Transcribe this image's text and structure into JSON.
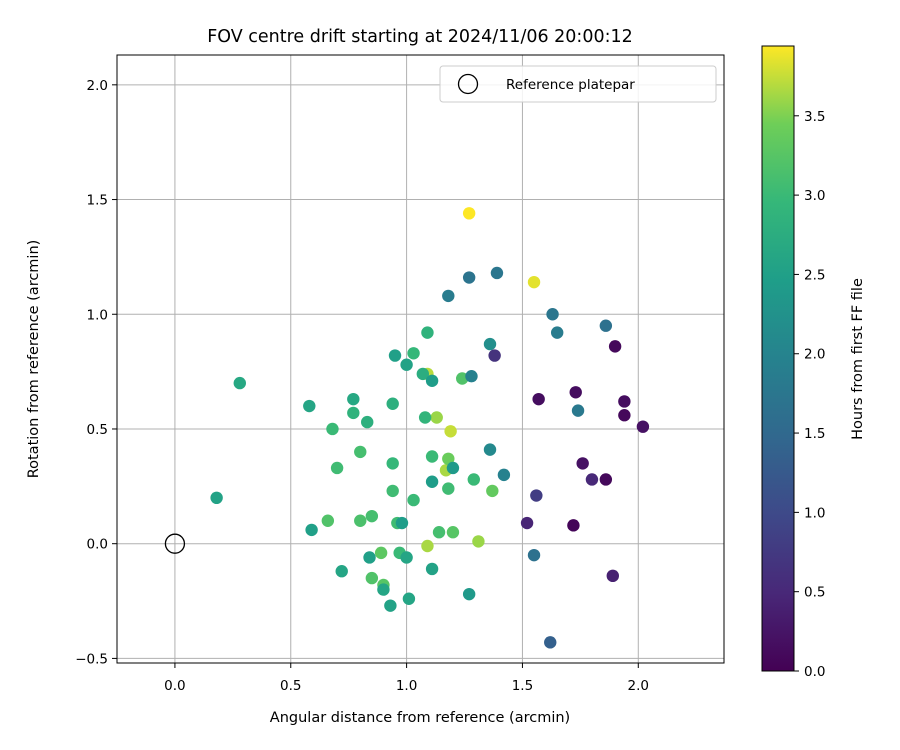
{
  "chart_data": {
    "type": "scatter",
    "title": "FOV centre drift starting at 2024/11/06 20:00:12",
    "xlabel": "Angular distance from reference (arcmin)",
    "ylabel": "Rotation from reference (arcmin)",
    "xlim": [
      -0.25,
      2.37
    ],
    "ylim": [
      -0.52,
      2.13
    ],
    "xticks": [
      0.0,
      0.5,
      1.0,
      1.5,
      2.0
    ],
    "xtick_labels": [
      "0.0",
      "0.5",
      "1.0",
      "1.5",
      "2.0"
    ],
    "yticks": [
      -0.5,
      0.0,
      0.5,
      1.0,
      1.5,
      2.0
    ],
    "ytick_labels": [
      "−0.5",
      "0.0",
      "0.5",
      "1.0",
      "1.5",
      "2.0"
    ],
    "grid": true,
    "legend": {
      "position": "top-right",
      "entries": [
        "Reference platepar"
      ]
    },
    "reference_point": {
      "x": 0.0,
      "y": 0.0,
      "label": "Reference platepar"
    },
    "colorbar": {
      "label": "Hours from first FF file",
      "colormap": "viridis",
      "range": [
        0.0,
        3.94
      ],
      "ticks": [
        0.0,
        0.5,
        1.0,
        1.5,
        2.0,
        2.5,
        3.0,
        3.5
      ],
      "tick_labels": [
        "0.0",
        "0.5",
        "1.0",
        "1.5",
        "2.0",
        "2.5",
        "3.0",
        "3.5"
      ]
    },
    "points": [
      {
        "x": 1.27,
        "y": 1.44,
        "h": 3.94
      },
      {
        "x": 1.55,
        "y": 1.14,
        "h": 3.85
      },
      {
        "x": 1.19,
        "y": 0.49,
        "h": 3.75
      },
      {
        "x": 1.09,
        "y": 0.74,
        "h": 3.7
      },
      {
        "x": 1.13,
        "y": 0.55,
        "h": 3.6
      },
      {
        "x": 1.17,
        "y": 0.32,
        "h": 3.65
      },
      {
        "x": 1.31,
        "y": 0.01,
        "h": 3.6
      },
      {
        "x": 1.09,
        "y": -0.01,
        "h": 3.65
      },
      {
        "x": 1.18,
        "y": 0.37,
        "h": 3.4
      },
      {
        "x": 1.37,
        "y": 0.23,
        "h": 3.35
      },
      {
        "x": 0.89,
        "y": -0.04,
        "h": 3.3
      },
      {
        "x": 0.9,
        "y": -0.18,
        "h": 3.25
      },
      {
        "x": 0.85,
        "y": -0.15,
        "h": 3.2
      },
      {
        "x": 0.66,
        "y": 0.1,
        "h": 3.2
      },
      {
        "x": 0.8,
        "y": 0.1,
        "h": 3.15
      },
      {
        "x": 0.85,
        "y": 0.12,
        "h": 3.1
      },
      {
        "x": 0.8,
        "y": 0.4,
        "h": 3.1
      },
      {
        "x": 0.7,
        "y": 0.33,
        "h": 3.05
      },
      {
        "x": 0.68,
        "y": 0.5,
        "h": 3.0
      },
      {
        "x": 1.03,
        "y": 0.19,
        "h": 3.0
      },
      {
        "x": 0.94,
        "y": 0.23,
        "h": 3.05
      },
      {
        "x": 0.94,
        "y": 0.35,
        "h": 2.95
      },
      {
        "x": 0.96,
        "y": 0.09,
        "h": 3.05
      },
      {
        "x": 0.97,
        "y": -0.04,
        "h": 3.0
      },
      {
        "x": 1.14,
        "y": 0.05,
        "h": 3.1
      },
      {
        "x": 1.2,
        "y": 0.05,
        "h": 3.25
      },
      {
        "x": 1.18,
        "y": 0.24,
        "h": 3.05
      },
      {
        "x": 1.29,
        "y": 0.28,
        "h": 3.0
      },
      {
        "x": 1.11,
        "y": 0.38,
        "h": 3.0
      },
      {
        "x": 1.24,
        "y": 0.72,
        "h": 3.2
      },
      {
        "x": 1.03,
        "y": 0.83,
        "h": 2.95
      },
      {
        "x": 1.09,
        "y": 0.92,
        "h": 2.85
      },
      {
        "x": 1.08,
        "y": 0.55,
        "h": 2.9
      },
      {
        "x": 0.94,
        "y": 0.61,
        "h": 2.8
      },
      {
        "x": 0.77,
        "y": 0.57,
        "h": 2.85
      },
      {
        "x": 0.83,
        "y": 0.53,
        "h": 2.8
      },
      {
        "x": 0.77,
        "y": 0.63,
        "h": 2.65
      },
      {
        "x": 0.58,
        "y": 0.6,
        "h": 2.6
      },
      {
        "x": 1.07,
        "y": 0.74,
        "h": 2.75
      },
      {
        "x": 0.95,
        "y": 0.82,
        "h": 2.5
      },
      {
        "x": 1.0,
        "y": 0.78,
        "h": 2.55
      },
      {
        "x": 1.11,
        "y": 0.71,
        "h": 2.45
      },
      {
        "x": 0.28,
        "y": 0.7,
        "h": 2.65
      },
      {
        "x": 0.18,
        "y": 0.2,
        "h": 2.55
      },
      {
        "x": 0.59,
        "y": 0.06,
        "h": 2.5
      },
      {
        "x": 0.72,
        "y": -0.12,
        "h": 2.6
      },
      {
        "x": 0.84,
        "y": -0.06,
        "h": 2.5
      },
      {
        "x": 0.9,
        "y": -0.2,
        "h": 2.6
      },
      {
        "x": 0.93,
        "y": -0.27,
        "h": 2.55
      },
      {
        "x": 1.01,
        "y": -0.24,
        "h": 2.6
      },
      {
        "x": 1.0,
        "y": -0.06,
        "h": 2.6
      },
      {
        "x": 0.98,
        "y": 0.09,
        "h": 2.45
      },
      {
        "x": 1.11,
        "y": -0.11,
        "h": 2.55
      },
      {
        "x": 1.11,
        "y": 0.27,
        "h": 2.45
      },
      {
        "x": 1.2,
        "y": 0.33,
        "h": 2.4
      },
      {
        "x": 1.27,
        "y": -0.22,
        "h": 2.4
      },
      {
        "x": 1.36,
        "y": 0.87,
        "h": 2.2
      },
      {
        "x": 1.36,
        "y": 0.41,
        "h": 2.1
      },
      {
        "x": 1.42,
        "y": 0.3,
        "h": 1.95
      },
      {
        "x": 1.28,
        "y": 0.73,
        "h": 1.95
      },
      {
        "x": 1.18,
        "y": 1.08,
        "h": 1.85
      },
      {
        "x": 1.27,
        "y": 1.16,
        "h": 1.7
      },
      {
        "x": 1.39,
        "y": 1.18,
        "h": 1.75
      },
      {
        "x": 1.63,
        "y": 1.0,
        "h": 1.75
      },
      {
        "x": 1.65,
        "y": 0.92,
        "h": 1.85
      },
      {
        "x": 1.74,
        "y": 0.58,
        "h": 1.8
      },
      {
        "x": 1.86,
        "y": 0.95,
        "h": 1.65
      },
      {
        "x": 1.55,
        "y": -0.05,
        "h": 1.65
      },
      {
        "x": 1.62,
        "y": -0.43,
        "h": 1.35
      },
      {
        "x": 1.38,
        "y": 0.82,
        "h": 0.65
      },
      {
        "x": 1.56,
        "y": 0.21,
        "h": 0.8
      },
      {
        "x": 1.52,
        "y": 0.09,
        "h": 0.45
      },
      {
        "x": 1.57,
        "y": 0.63,
        "h": 0.15
      },
      {
        "x": 1.73,
        "y": 0.66,
        "h": 0.15
      },
      {
        "x": 1.76,
        "y": 0.35,
        "h": 0.2
      },
      {
        "x": 1.8,
        "y": 0.28,
        "h": 0.5
      },
      {
        "x": 1.86,
        "y": 0.28,
        "h": 0.1
      },
      {
        "x": 1.72,
        "y": 0.08,
        "h": 0.05
      },
      {
        "x": 1.89,
        "y": -0.14,
        "h": 0.4
      },
      {
        "x": 1.9,
        "y": 0.86,
        "h": 0.1
      },
      {
        "x": 1.94,
        "y": 0.62,
        "h": 0.15
      },
      {
        "x": 1.94,
        "y": 0.56,
        "h": 0.1
      },
      {
        "x": 2.02,
        "y": 0.51,
        "h": 0.2
      }
    ]
  }
}
